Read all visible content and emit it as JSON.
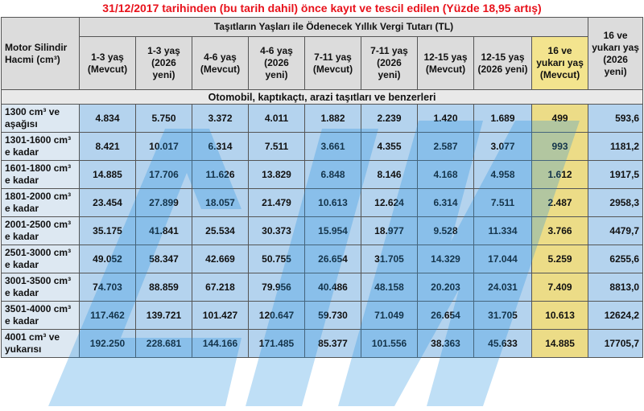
{
  "title": "31/12/2017 tarihinden (bu tarih dahil) önce kayıt ve tescil edilen (Yüzde 18,95 artış)",
  "header": {
    "corner": "Motor Silindir Hacmi (cm³)",
    "group": "Taşıtların Yaşları ile Ödenecek Yıllık Vergi Tutarı (TL)",
    "columns": [
      "1-3 yaş (Mevcut)",
      "1-3 yaş (2026 yeni)",
      "4-6 yaş (Mevcut)",
      "4-6 yaş (2026 yeni)",
      "7-11 yaş (Mevcut)",
      "7-11 yaş (2026 yeni)",
      "12-15 yaş (Mevcut)",
      "12-15 yaş (2026 yeni)",
      "16 ve yukarı yaş (Mevcut)",
      "16 ve yukarı yaş (2026 yeni)"
    ]
  },
  "section_label": "Otomobil, kaptıkaçtı, arazi taşıtları ve benzerleri",
  "rows": [
    {
      "label": "1300 cm³ ve aşağısı",
      "values": [
        "4.834",
        "5.750",
        "3.372",
        "4.011",
        "1.882",
        "2.239",
        "1.420",
        "1.689",
        "499",
        "593,6"
      ]
    },
    {
      "label": "1301-1600 cm³ e kadar",
      "values": [
        "8.421",
        "10.017",
        "6.314",
        "7.511",
        "3.661",
        "4.355",
        "2.587",
        "3.077",
        "993",
        "1181,2"
      ]
    },
    {
      "label": "1601-1800 cm³ e kadar",
      "values": [
        "14.885",
        "17.706",
        "11.626",
        "13.829",
        "6.848",
        "8.146",
        "4.168",
        "4.958",
        "1.612",
        "1917,5"
      ]
    },
    {
      "label": "1801-2000 cm³ e kadar",
      "values": [
        "23.454",
        "27.899",
        "18.057",
        "21.479",
        "10.613",
        "12.624",
        "6.314",
        "7.511",
        "2.487",
        "2958,3"
      ]
    },
    {
      "label": "2001-2500 cm³ e kadar",
      "values": [
        "35.175",
        "41.841",
        "25.534",
        "30.373",
        "15.954",
        "18.977",
        "9.528",
        "11.334",
        "3.766",
        "4479,7"
      ]
    },
    {
      "label": "2501-3000 cm³ e kadar",
      "values": [
        "49.052",
        "58.347",
        "42.669",
        "50.755",
        "26.654",
        "31.705",
        "14.329",
        "17.044",
        "5.259",
        "6255,6"
      ]
    },
    {
      "label": "3001-3500 cm³ e kadar",
      "values": [
        "74.703",
        "88.859",
        "67.218",
        "79.956",
        "40.486",
        "48.158",
        "20.203",
        "24.031",
        "7.409",
        "8813,0"
      ]
    },
    {
      "label": "3501-4000 cm³ e kadar",
      "values": [
        "117.462",
        "139.721",
        "101.427",
        "120.647",
        "59.730",
        "71.049",
        "26.654",
        "31.705",
        "10.613",
        "12624,2"
      ]
    },
    {
      "label": "4001 cm³ ve yukarısı",
      "values": [
        "192.250",
        "228.681",
        "144.166",
        "171.485",
        "85.377",
        "101.556",
        "38.363",
        "45.633",
        "14.885",
        "17705,7"
      ]
    }
  ],
  "colors": {
    "title": "#e8121b",
    "header_bg": "#dcdcdc",
    "cell_bg": "#b4d3ee",
    "highlight": "#ecdc87"
  }
}
